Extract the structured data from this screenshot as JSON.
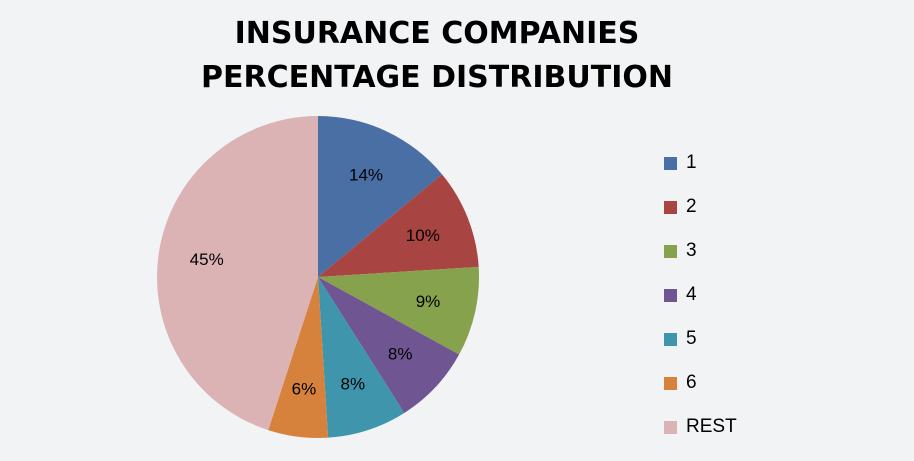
{
  "chart_data": {
    "type": "pie",
    "title_lines": [
      "INSURANCE COMPANIES",
      "PERCENTAGE DISTRIBUTION"
    ],
    "categories": [
      "1",
      "2",
      "3",
      "4",
      "5",
      "6",
      "REST"
    ],
    "values": [
      14,
      10,
      9,
      8,
      8,
      6,
      45
    ],
    "labels": [
      "14%",
      "10%",
      "9%",
      "8%",
      "8%",
      "6%",
      "45%"
    ],
    "colors": [
      "#4a6fa5",
      "#a84441",
      "#87a24c",
      "#6f5692",
      "#3f95ab",
      "#d6823c",
      "#dbb3b4"
    ],
    "legend_position": "right",
    "start_angle": "12 o'clock",
    "direction": "clockwise"
  }
}
